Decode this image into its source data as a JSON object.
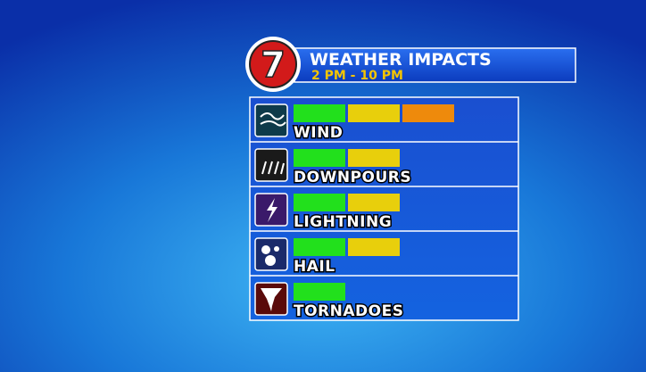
{
  "header": {
    "logo": "7",
    "title": "WEATHER IMPACTS",
    "subtitle": "2 PM - 10 PM"
  },
  "level_colors": [
    "#22e01c",
    "#e8cf0c",
    "#ee8a0c"
  ],
  "rows": [
    {
      "label": "WIND",
      "level": 3
    },
    {
      "label": "DOWNPOURS",
      "level": 2
    },
    {
      "label": "LIGHTNING",
      "level": 2
    },
    {
      "label": "HAIL",
      "level": 2
    },
    {
      "label": "TORNADOES",
      "level": 1
    }
  ]
}
